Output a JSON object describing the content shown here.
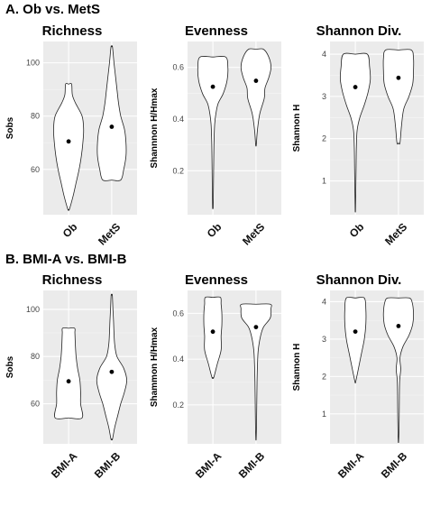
{
  "sections": [
    {
      "label": "A. Ob vs. MetS"
    },
    {
      "label": "B.  BMI-A vs. BMI-B"
    }
  ],
  "chart_data": [
    {
      "type": "violin",
      "title": "Richness",
      "ylabel": "Sobs",
      "categories": [
        "Ob",
        "MetS"
      ],
      "yticks": [
        60,
        80,
        100
      ],
      "ylim": [
        43,
        108
      ],
      "means": [
        70.5,
        76
      ],
      "violins": [
        [
          [
            45,
            0.05
          ],
          [
            50,
            0.3
          ],
          [
            55,
            0.5
          ],
          [
            60,
            0.7
          ],
          [
            65,
            0.85
          ],
          [
            70,
            0.95
          ],
          [
            75,
            1.0
          ],
          [
            80,
            0.9
          ],
          [
            85,
            0.45
          ],
          [
            88,
            0.25
          ],
          [
            92,
            0.2
          ]
        ],
        [
          [
            56,
            0.6
          ],
          [
            60,
            0.8
          ],
          [
            65,
            0.95
          ],
          [
            70,
            0.95
          ],
          [
            75,
            0.85
          ],
          [
            80,
            0.6
          ],
          [
            85,
            0.45
          ],
          [
            90,
            0.35
          ],
          [
            95,
            0.25
          ],
          [
            100,
            0.15
          ],
          [
            106,
            0.05
          ]
        ]
      ]
    },
    {
      "type": "violin",
      "title": "Evenness",
      "ylabel": "Shannnon H/Hmax",
      "categories": [
        "Ob",
        "MetS"
      ],
      "yticks": [
        0.2,
        0.4,
        0.6
      ],
      "ylim": [
        0.03,
        0.7
      ],
      "means": [
        0.525,
        0.548
      ],
      "violins": [
        [
          [
            0.06,
            0.02
          ],
          [
            0.15,
            0.04
          ],
          [
            0.25,
            0.06
          ],
          [
            0.32,
            0.08
          ],
          [
            0.38,
            0.12
          ],
          [
            0.42,
            0.2
          ],
          [
            0.46,
            0.35
          ],
          [
            0.5,
            0.7
          ],
          [
            0.55,
            0.95
          ],
          [
            0.6,
            1.0
          ],
          [
            0.64,
            0.85
          ]
        ],
        [
          [
            0.3,
            0.02
          ],
          [
            0.36,
            0.1
          ],
          [
            0.42,
            0.25
          ],
          [
            0.48,
            0.55
          ],
          [
            0.52,
            0.6
          ],
          [
            0.56,
            0.85
          ],
          [
            0.6,
            1.0
          ],
          [
            0.64,
            0.85
          ],
          [
            0.67,
            0.5
          ]
        ]
      ]
    },
    {
      "type": "violin",
      "title": "Shannon Div.",
      "ylabel": "Shannon H",
      "categories": [
        "Ob",
        "MetS"
      ],
      "yticks": [
        1,
        2,
        3,
        4
      ],
      "ylim": [
        0.2,
        4.3
      ],
      "means": [
        3.22,
        3.44
      ],
      "violins": [
        [
          [
            0.3,
            0.01
          ],
          [
            0.8,
            0.03
          ],
          [
            1.3,
            0.05
          ],
          [
            1.8,
            0.07
          ],
          [
            2.2,
            0.12
          ],
          [
            2.5,
            0.3
          ],
          [
            2.8,
            0.6
          ],
          [
            3.1,
            0.85
          ],
          [
            3.4,
            1.0
          ],
          [
            3.7,
            0.95
          ],
          [
            4.0,
            0.8
          ]
        ],
        [
          [
            1.9,
            0.1
          ],
          [
            2.3,
            0.2
          ],
          [
            2.7,
            0.35
          ],
          [
            3.0,
            0.7
          ],
          [
            3.3,
            0.95
          ],
          [
            3.6,
            1.0
          ],
          [
            3.9,
            1.0
          ],
          [
            4.1,
            0.85
          ]
        ]
      ]
    },
    {
      "type": "violin",
      "title": "Richness",
      "ylabel": "Sobs",
      "categories": [
        "BMI-A",
        "BMI-B"
      ],
      "yticks": [
        60,
        80,
        100
      ],
      "ylim": [
        43,
        108
      ],
      "means": [
        69.5,
        73.5
      ],
      "violins": [
        [
          [
            54,
            0.9
          ],
          [
            60,
            0.8
          ],
          [
            65,
            0.8
          ],
          [
            70,
            0.75
          ],
          [
            75,
            0.6
          ],
          [
            80,
            0.5
          ],
          [
            85,
            0.45
          ],
          [
            90,
            0.42
          ],
          [
            92,
            0.4
          ]
        ],
        [
          [
            45,
            0.05
          ],
          [
            50,
            0.2
          ],
          [
            55,
            0.4
          ],
          [
            60,
            0.6
          ],
          [
            65,
            0.85
          ],
          [
            70,
            1.0
          ],
          [
            75,
            0.8
          ],
          [
            80,
            0.35
          ],
          [
            85,
            0.2
          ],
          [
            90,
            0.15
          ],
          [
            95,
            0.12
          ],
          [
            100,
            0.08
          ],
          [
            106,
            0.04
          ]
        ]
      ]
    },
    {
      "type": "violin",
      "title": "Evenness",
      "ylabel": "Shammon H/Hmax",
      "categories": [
        "BMI-A",
        "BMI-B"
      ],
      "yticks": [
        0.2,
        0.4,
        0.6
      ],
      "ylim": [
        0.03,
        0.7
      ],
      "means": [
        0.52,
        0.54
      ],
      "violins": [
        [
          [
            0.32,
            0.06
          ],
          [
            0.38,
            0.3
          ],
          [
            0.44,
            0.55
          ],
          [
            0.5,
            0.55
          ],
          [
            0.55,
            0.6
          ],
          [
            0.6,
            0.6
          ],
          [
            0.64,
            0.55
          ],
          [
            0.67,
            0.5
          ]
        ],
        [
          [
            0.05,
            0.01
          ],
          [
            0.1,
            0.03
          ],
          [
            0.2,
            0.05
          ],
          [
            0.3,
            0.07
          ],
          [
            0.38,
            0.1
          ],
          [
            0.44,
            0.15
          ],
          [
            0.5,
            0.3
          ],
          [
            0.54,
            0.5
          ],
          [
            0.58,
            0.95
          ],
          [
            0.62,
            1.0
          ],
          [
            0.64,
            0.95
          ]
        ]
      ]
    },
    {
      "type": "violin",
      "title": "Shannon Div.",
      "ylabel": "Shannon H",
      "categories": [
        "BMI-A",
        "BMI-B"
      ],
      "yticks": [
        1,
        2,
        3,
        4
      ],
      "ylim": [
        0.2,
        4.3
      ],
      "means": [
        3.2,
        3.35
      ],
      "violins": [
        [
          [
            1.85,
            0.02
          ],
          [
            2.2,
            0.2
          ],
          [
            2.6,
            0.4
          ],
          [
            3.0,
            0.6
          ],
          [
            3.4,
            0.7
          ],
          [
            3.8,
            0.7
          ],
          [
            4.1,
            0.6
          ]
        ],
        [
          [
            0.25,
            0.01
          ],
          [
            0.5,
            0.03
          ],
          [
            1.0,
            0.05
          ],
          [
            1.5,
            0.06
          ],
          [
            1.9,
            0.08
          ],
          [
            2.2,
            0.15
          ],
          [
            2.5,
            0.1
          ],
          [
            2.8,
            0.3
          ],
          [
            3.1,
            0.7
          ],
          [
            3.4,
            0.95
          ],
          [
            3.7,
            1.0
          ],
          [
            4.0,
            0.9
          ],
          [
            4.1,
            0.7
          ]
        ]
      ]
    }
  ]
}
